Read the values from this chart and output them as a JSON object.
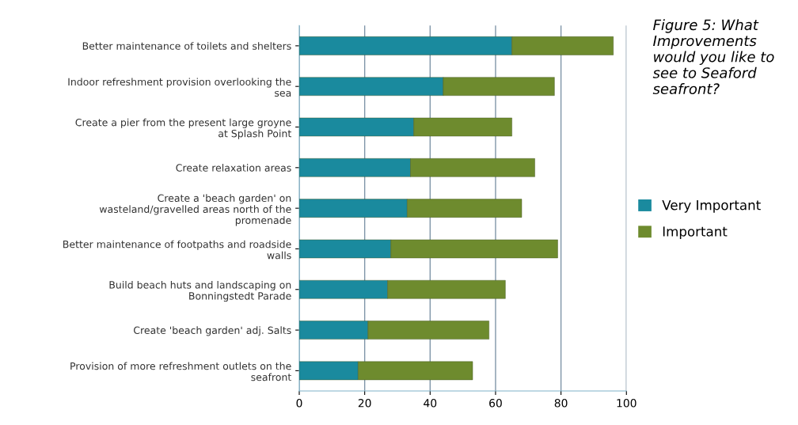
{
  "chart_data": {
    "type": "bar",
    "orientation": "horizontal",
    "stacked": true,
    "title": "Figure 5: What Improvements would you like to see to Seaford seafront?",
    "categories": [
      "Better maintenance of toilets and shelters",
      "Indoor refreshment provision overlooking the sea",
      "Create a pier from the present large groyne at Splash Point",
      "Create relaxation areas",
      "Create a 'beach garden' on wasteland/gravelled areas north of the promenade",
      "Better maintenance of footpaths and roadside walls",
      "Build beach huts and landscaping on Bonningstedt Parade",
      "Create 'beach garden' adj. Salts",
      "Provision of more refreshment outlets on the seafront"
    ],
    "series": [
      {
        "name": "Very Important",
        "color": "#1a8a9e",
        "values": [
          65,
          44,
          35,
          34,
          33,
          28,
          27,
          21,
          18
        ]
      },
      {
        "name": "Important",
        "color": "#6e8b2e",
        "values": [
          31,
          34,
          30,
          38,
          35,
          51,
          36,
          37,
          35
        ]
      }
    ],
    "xlim": [
      0,
      100
    ],
    "xticks": [
      0,
      20,
      40,
      60,
      80,
      100
    ],
    "grid": "x",
    "legend": "right"
  }
}
